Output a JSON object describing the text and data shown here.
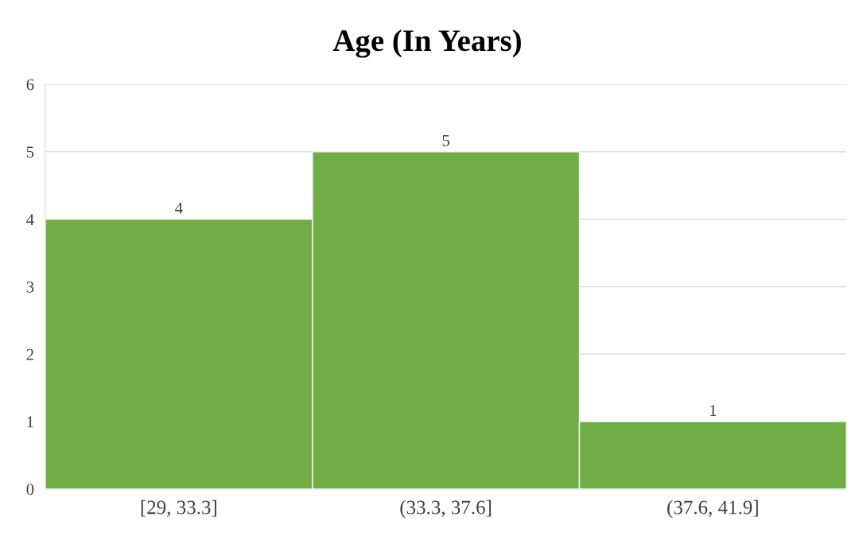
{
  "chart_data": {
    "type": "bar",
    "title": "Age (In Years)",
    "categories": [
      "[29, 33.3]",
      "(33.3, 37.6]",
      "(37.6, 41.9]"
    ],
    "values": [
      4,
      5,
      1
    ],
    "color": "#70ad47",
    "ylim": [
      0,
      6
    ],
    "yticks": [
      0,
      1,
      2,
      3,
      4,
      5,
      6
    ],
    "grid": "y",
    "data_labels": true
  }
}
